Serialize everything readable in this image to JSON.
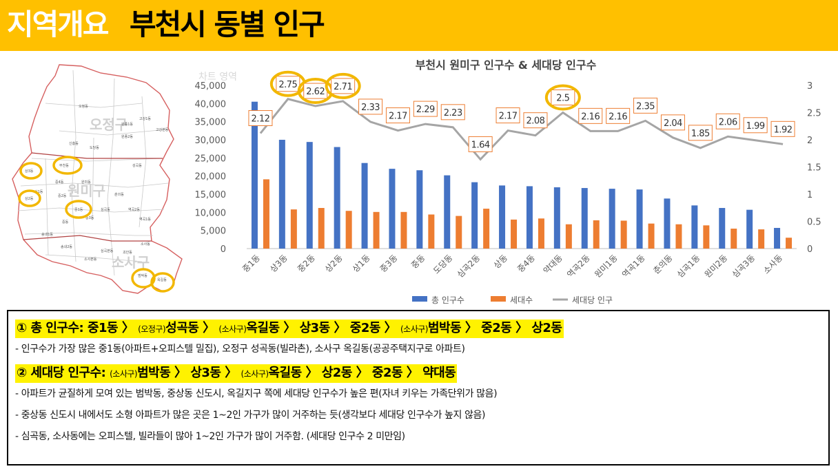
{
  "header": {
    "prefix": "지역개요",
    "title": "부천시 동별 인구"
  },
  "map": {
    "district_labels": [
      "오정구",
      "원미구",
      "소사구"
    ],
    "dong_labels": [
      "오정동",
      "고강1동",
      "고강본동",
      "원종1동",
      "원종2동",
      "신흥동",
      "도당동",
      "성곡동",
      "상3동",
      "부천동",
      "중4동",
      "원미동",
      "상1동",
      "중2동",
      "상2동",
      "중1동",
      "춘의동",
      "중3동",
      "심곡동",
      "중동",
      "역곡1동",
      "역곡2동",
      "소사본동",
      "범박동",
      "옥길동",
      "괴안동",
      "송내1동",
      "송내2동",
      "심곡본동",
      "소사동"
    ]
  },
  "chart_data": {
    "type": "bar",
    "title": "부천시 원미구 인구수 & 세대당 인구수",
    "watermark": "차트 영역",
    "categories": [
      "중1동",
      "상3동",
      "중2동",
      "상2동",
      "상1동",
      "중3동",
      "중동",
      "도당동",
      "심곡2동",
      "상동",
      "중4동",
      "약대동",
      "역곡2동",
      "원미1동",
      "역곡1동",
      "춘의동",
      "심곡1동",
      "원미2동",
      "심곡3동",
      "소사동"
    ],
    "series": [
      {
        "name": "총 인구수",
        "kind": "bar",
        "axis": "left",
        "color": "#4472C4",
        "values": [
          40500,
          30000,
          29400,
          28000,
          23600,
          22000,
          21600,
          20200,
          18300,
          17400,
          17200,
          16900,
          16700,
          16500,
          16300,
          13800,
          11900,
          11200,
          10700,
          5700
        ]
      },
      {
        "name": "세대수",
        "kind": "bar",
        "axis": "left",
        "color": "#ED7D31",
        "values": [
          19100,
          10800,
          11200,
          10400,
          10100,
          10100,
          9400,
          9000,
          11000,
          8000,
          8300,
          6700,
          7800,
          7700,
          6900,
          6700,
          6400,
          5500,
          5300,
          3000
        ]
      },
      {
        "name": "세대당 인구",
        "kind": "line",
        "axis": "right",
        "color": "#A5A5A5",
        "values": [
          2.12,
          2.75,
          2.62,
          2.71,
          2.33,
          2.17,
          2.29,
          2.23,
          1.64,
          2.17,
          2.08,
          2.5,
          2.16,
          2.16,
          2.35,
          2.04,
          1.85,
          2.06,
          1.99,
          1.92
        ]
      }
    ],
    "data_labels": [
      "2.12",
      "2.75",
      "2.62",
      "2.71",
      "2.33",
      "2.17",
      "2.29",
      "2.23",
      "1.64",
      "2.17",
      "2.08",
      "2.5",
      "2.16",
      "2.16",
      "2.35",
      "2.04",
      "1.85",
      "2.06",
      "1.99",
      "1.92"
    ],
    "circled_categories": [
      "상3동",
      "중2동",
      "상2동",
      "약대동"
    ],
    "y_left": {
      "range": [
        0,
        45000
      ],
      "ticks": [
        "0",
        "5,000",
        "10,000",
        "15,000",
        "20,000",
        "25,000",
        "30,000",
        "35,000",
        "40,000",
        "45,000"
      ]
    },
    "y_right": {
      "range": [
        0,
        3
      ],
      "ticks": [
        "0",
        "0.5",
        "1",
        "1.5",
        "2",
        "2.5",
        "3"
      ]
    },
    "legend_position": "bottom",
    "grid": false
  },
  "notes": {
    "line1": {
      "num": "① 총 인구수: 중1동 〉",
      "p1": "(오정구)",
      "t1": "성곡동 〉",
      "p2": "(소사구)",
      "t2": "옥길동 〉 상3동 〉 중2동 〉",
      "p3": "(소사구)",
      "t3": "범박동 〉 중2동 〉 상2동"
    },
    "note1": "- 인구수가 가장 많은 중1동(아파트+오피스텔 밀집), 오정구 성곡동(빌라촌), 소사구 옥길동(공공주택지구로 아파트)",
    "line2": {
      "num": "② 세대당 인구수:",
      "p1": "(소사구)",
      "t1": "범박동 〉 상3동 〉",
      "p2": "(소사구)",
      "t2": "옥길동 〉 상2동 〉 중2동 〉 약대동"
    },
    "note2": "- 아파트가 균질하게 모여 있는 범박동, 중상동 신도시, 옥길지구 쪽에 세대당 인구수가 높은 편(자녀 키우는 가족단위가 많음)",
    "note3": "- 중상동 신도시 내에서도 소형 아파트가 많은 곳은 1~2인 가구가 많이 거주하는 듯(생각보다 세대당 인구수가 높지 않음)",
    "note4": "- 심곡동, 소사동에는 오피스텔, 빌라들이 많아 1~2인 가구가 많이 거주함. (세대당 인구수 2 미만임)"
  }
}
